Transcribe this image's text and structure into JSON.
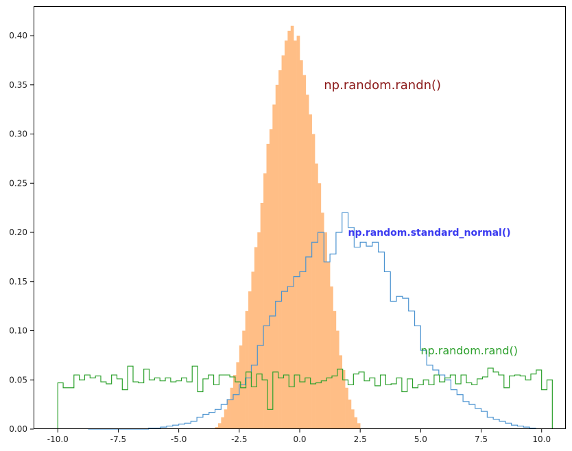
{
  "chart_data": {
    "type": "histogram",
    "xlim": [
      -11.0,
      11.0
    ],
    "ylim": [
      0.0,
      0.43
    ],
    "x_ticks": [
      -10.0,
      -7.5,
      -5.0,
      -2.5,
      0.0,
      2.5,
      5.0,
      7.5,
      10.0
    ],
    "x_tick_labels": [
      "-10.0",
      "-7.5",
      "-5.0",
      "-2.5",
      "0.0",
      "2.5",
      "5.0",
      "7.5",
      "10.0"
    ],
    "y_ticks": [
      0.0,
      0.05,
      0.1,
      0.15,
      0.2,
      0.25,
      0.3,
      0.35,
      0.4
    ],
    "y_tick_labels": [
      "0.00",
      "0.05",
      "0.10",
      "0.15",
      "0.20",
      "0.25",
      "0.30",
      "0.35",
      "0.40"
    ],
    "grid": false,
    "series": [
      {
        "style": "filled",
        "color": "#ffbe86",
        "bin_start": -3.5,
        "bin_width": 0.125,
        "values": [
          0.002,
          0.006,
          0.012,
          0.02,
          0.03,
          0.042,
          0.055,
          0.068,
          0.085,
          0.1,
          0.12,
          0.14,
          0.16,
          0.185,
          0.2,
          0.23,
          0.26,
          0.29,
          0.305,
          0.33,
          0.35,
          0.365,
          0.38,
          0.395,
          0.405,
          0.41,
          0.395,
          0.4,
          0.375,
          0.36,
          0.34,
          0.32,
          0.3,
          0.27,
          0.25,
          0.22,
          0.2,
          0.17,
          0.145,
          0.12,
          0.1,
          0.075,
          0.06,
          0.042,
          0.03,
          0.02,
          0.012,
          0.006
        ]
      },
      {
        "style": "step",
        "color": "#4b93d0",
        "bin_start": -8.75,
        "bin_width": 0.25,
        "values": [
          0.0,
          0.0,
          0.0,
          0.0,
          0.0,
          0.0,
          0.0,
          0.0,
          0.0,
          0.0,
          0.001,
          0.001,
          0.002,
          0.003,
          0.004,
          0.005,
          0.006,
          0.008,
          0.012,
          0.015,
          0.017,
          0.02,
          0.025,
          0.03,
          0.035,
          0.045,
          0.052,
          0.065,
          0.085,
          0.105,
          0.115,
          0.13,
          0.14,
          0.145,
          0.155,
          0.16,
          0.175,
          0.19,
          0.2,
          0.17,
          0.178,
          0.2,
          0.22,
          0.205,
          0.185,
          0.19,
          0.186,
          0.19,
          0.18,
          0.16,
          0.13,
          0.135,
          0.133,
          0.12,
          0.105,
          0.08,
          0.065,
          0.06,
          0.055,
          0.05,
          0.04,
          0.035,
          0.028,
          0.025,
          0.021,
          0.018,
          0.012,
          0.01,
          0.008,
          0.006,
          0.004,
          0.003,
          0.002,
          0.001
        ]
      },
      {
        "style": "step",
        "color": "#2ca02c",
        "bin_start": -10.0,
        "bin_width": 0.2222,
        "values": [
          0.047,
          0.042,
          0.042,
          0.055,
          0.05,
          0.055,
          0.052,
          0.054,
          0.048,
          0.046,
          0.055,
          0.051,
          0.04,
          0.064,
          0.048,
          0.047,
          0.061,
          0.05,
          0.052,
          0.049,
          0.052,
          0.048,
          0.049,
          0.052,
          0.048,
          0.064,
          0.038,
          0.051,
          0.055,
          0.045,
          0.055,
          0.055,
          0.053,
          0.048,
          0.042,
          0.058,
          0.043,
          0.056,
          0.05,
          0.02,
          0.058,
          0.052,
          0.055,
          0.043,
          0.055,
          0.048,
          0.052,
          0.046,
          0.047,
          0.049,
          0.052,
          0.054,
          0.061,
          0.05,
          0.045,
          0.056,
          0.058,
          0.049,
          0.052,
          0.044,
          0.055,
          0.045,
          0.046,
          0.052,
          0.038,
          0.051,
          0.042,
          0.045,
          0.05,
          0.045,
          0.055,
          0.048,
          0.052,
          0.055,
          0.046,
          0.055,
          0.047,
          0.045,
          0.051,
          0.053,
          0.062,
          0.058,
          0.055,
          0.042,
          0.054,
          0.055,
          0.054,
          0.05,
          0.056,
          0.06,
          0.04,
          0.05
        ]
      }
    ],
    "annotations": [
      {
        "text": "np.random.randn()",
        "x": 1.0,
        "y": 0.35,
        "color": "#8b1a1a",
        "size": 18,
        "weight": "normal"
      },
      {
        "text": "np.random.standard_normal()",
        "x": 2.0,
        "y": 0.2,
        "color": "#3b3bf0",
        "size": 14,
        "weight": "bold"
      },
      {
        "text": "np.random.rand()",
        "x": 5.0,
        "y": 0.08,
        "color": "#2ca02c",
        "size": 16,
        "weight": "normal"
      }
    ]
  }
}
